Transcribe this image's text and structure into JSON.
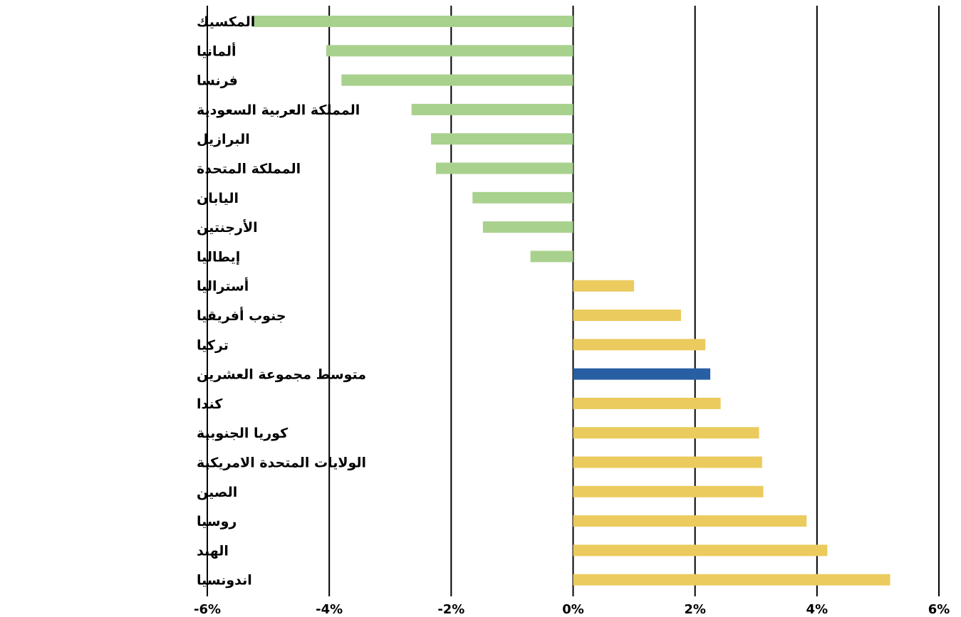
{
  "chart_data": {
    "type": "bar",
    "orientation": "horizontal",
    "title": "",
    "xlabel": "",
    "ylabel": "",
    "xlim": [
      -6,
      6
    ],
    "x_ticks": [
      -6,
      -4,
      -2,
      0,
      2,
      4,
      6
    ],
    "x_tick_labels": [
      "-6%",
      "-4%",
      "-2%",
      "0%",
      "2%",
      "4%",
      "6%"
    ],
    "grid": "vertical",
    "legend": "none",
    "categories": [
      "المكسيك",
      "ألمانيا",
      "فرنسا",
      "المملكة العربية السعودية",
      "البرازيل",
      "المملكة المتحدة",
      "اليابان",
      "الأرجنتين",
      "إيطاليا",
      "أستراليا",
      "جنوب أفريقيا",
      "تركيا",
      "متوسط مجموعة العشرين",
      "كندا",
      "كوريا الجنوبية",
      "الولايات المتحدة الامريكية",
      "الصين",
      "روسيا",
      "الهند",
      "اندونسيا"
    ],
    "values": [
      -5.25,
      -4.05,
      -3.8,
      -2.65,
      -2.33,
      -2.25,
      -1.65,
      -1.48,
      -0.7,
      1.0,
      1.77,
      2.17,
      2.25,
      2.42,
      3.05,
      3.1,
      3.12,
      3.83,
      4.17,
      5.2
    ],
    "colors": {
      "negative": "#a9d18e",
      "positive": "#ebcb5e",
      "highlight": "#285fa3"
    },
    "highlight_category": "متوسط مجموعة العشرين"
  }
}
